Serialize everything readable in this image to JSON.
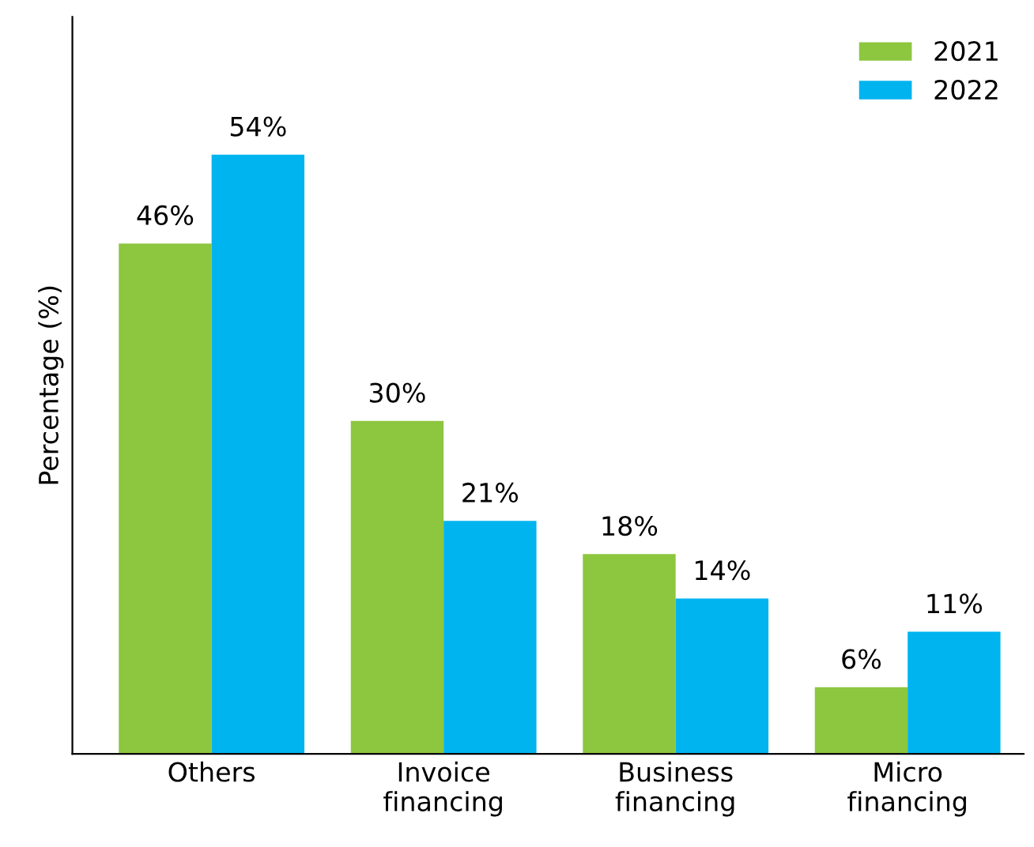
{
  "chart_data": {
    "type": "bar",
    "ylabel": "Percentage (%)",
    "categories": [
      "Others",
      "Invoice\nfinancing",
      "Business\nfinancing",
      "Micro\nfinancing"
    ],
    "series": [
      {
        "name": "2021",
        "color": "#8dc63f",
        "values": [
          46,
          30,
          18,
          6
        ],
        "value_labels": [
          "46%",
          "30%",
          "18%",
          "6%"
        ]
      },
      {
        "name": "2022",
        "color": "#00b4ef",
        "values": [
          54,
          21,
          14,
          11
        ],
        "value_labels": [
          "54%",
          "21%",
          "14%",
          "11%"
        ]
      }
    ],
    "legend": "top right",
    "grid": false
  }
}
